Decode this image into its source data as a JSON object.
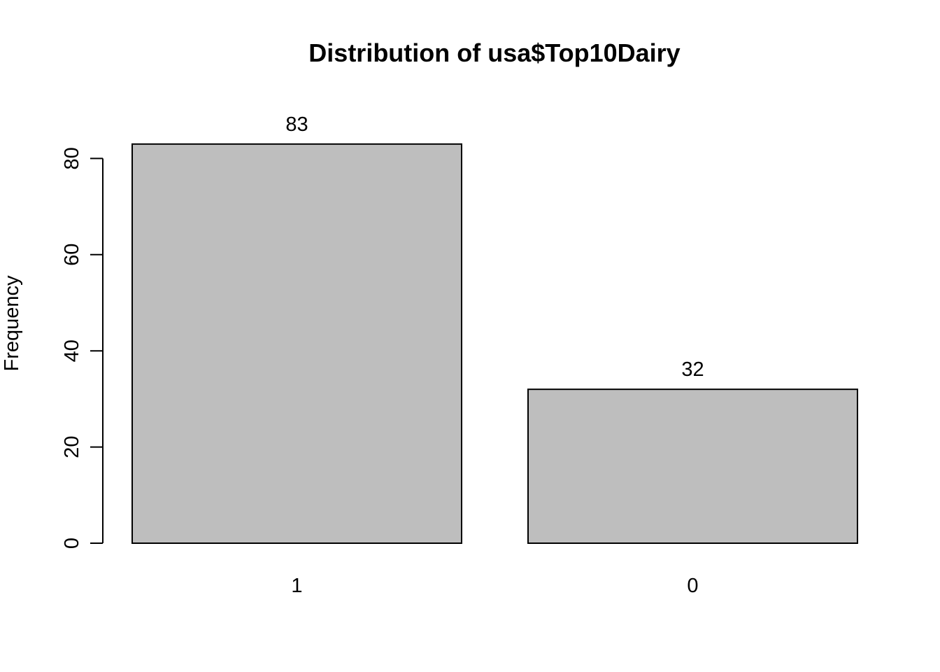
{
  "chart_data": {
    "type": "bar",
    "title": "Distribution of usa$Top10Dairy",
    "xlabel": "",
    "ylabel": "Frequency",
    "categories": [
      "1",
      "0"
    ],
    "values": [
      83,
      32
    ],
    "data_labels": [
      "83",
      "32"
    ],
    "ylim": [
      0,
      83
    ],
    "yticks": [
      0,
      20,
      40,
      60,
      80
    ],
    "ytick_labels": [
      "0",
      "20",
      "40",
      "60",
      "80"
    ],
    "grid": false,
    "bar_color": "#bebebe",
    "border_color": "#000000"
  }
}
